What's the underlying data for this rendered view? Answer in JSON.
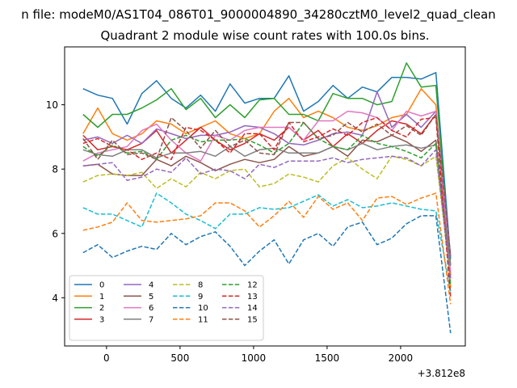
{
  "chart_data": {
    "type": "line",
    "suptitle": "n file: modeM0/AS1T04_086T01_9000004890_34280cztM0_level2_quad_clean",
    "title": "Quadrant 2 module wise count rates with 100.0s bins.",
    "xlabel": "",
    "ylabel": "",
    "x_offset_label": "+3.812e8",
    "xlim": [
      -285,
      2440
    ],
    "ylim": [
      2.5,
      11.8
    ],
    "xticks": [
      0,
      500,
      1000,
      1500,
      2000
    ],
    "xtick_labels": [
      "0",
      "500",
      "1000",
      "1500",
      "2000"
    ],
    "yticks": [
      4,
      6,
      8,
      10
    ],
    "ytick_labels": [
      "4",
      "6",
      "8",
      "10"
    ],
    "grid": false,
    "legend": {
      "placement": "lower-left",
      "columns": 4
    },
    "x": [
      -160,
      -60,
      40,
      140,
      240,
      340,
      440,
      540,
      640,
      740,
      840,
      940,
      1040,
      1140,
      1240,
      1340,
      1440,
      1540,
      1640,
      1740,
      1840,
      1940,
      2040,
      2140,
      2240,
      2340
    ],
    "series": [
      {
        "name": "0",
        "color": "#1f77b4",
        "dash": "solid",
        "values": [
          10.5,
          10.3,
          10.2,
          9.4,
          10.35,
          10.75,
          10.2,
          9.9,
          10.3,
          9.8,
          10.65,
          10.05,
          10.2,
          10.2,
          10.9,
          9.8,
          10.1,
          10.6,
          10.2,
          10.55,
          10.4,
          10.85,
          10.85,
          10.8,
          11.0,
          5.2
        ]
      },
      {
        "name": "1",
        "color": "#ff7f0e",
        "dash": "solid",
        "values": [
          9.1,
          9.9,
          9.1,
          8.9,
          9.1,
          9.5,
          9.4,
          9.1,
          9.3,
          9.5,
          9.1,
          8.95,
          9.1,
          9.8,
          10.2,
          9.6,
          9.8,
          9.6,
          9.3,
          9.2,
          9.35,
          9.6,
          9.7,
          10.5,
          10.0,
          4.3
        ]
      },
      {
        "name": "2",
        "color": "#2ca02c",
        "dash": "solid",
        "values": [
          9.7,
          9.3,
          9.7,
          9.7,
          9.9,
          10.15,
          10.5,
          9.85,
          10.2,
          9.6,
          10.0,
          9.6,
          10.15,
          10.2,
          9.7,
          9.7,
          9.5,
          10.35,
          10.2,
          10.2,
          10.0,
          10.1,
          11.3,
          10.55,
          10.6,
          5.0
        ]
      },
      {
        "name": "3",
        "color": "#d62728",
        "dash": "solid",
        "values": [
          9.05,
          8.6,
          8.7,
          8.6,
          8.8,
          9.2,
          8.5,
          8.9,
          9.3,
          8.9,
          8.6,
          8.8,
          9.1,
          8.9,
          9.3,
          8.9,
          9.2,
          8.7,
          9.1,
          8.8,
          9.2,
          9.5,
          9.4,
          9.1,
          9.7,
          4.7
        ]
      },
      {
        "name": "4",
        "color": "#9467bd",
        "dash": "solid",
        "values": [
          8.9,
          9.0,
          8.8,
          9.05,
          8.8,
          9.25,
          9.1,
          8.95,
          9.05,
          9.05,
          9.15,
          9.35,
          9.3,
          9.1,
          8.8,
          8.75,
          8.9,
          9.1,
          9.15,
          9.05,
          10.4,
          9.3,
          9.7,
          9.3,
          9.8,
          5.3
        ]
      },
      {
        "name": "5",
        "color": "#8c564b",
        "dash": "solid",
        "values": [
          8.1,
          8.15,
          7.85,
          7.8,
          7.8,
          8.3,
          8.1,
          8.4,
          8.2,
          7.95,
          8.15,
          8.3,
          8.2,
          8.3,
          8.7,
          8.4,
          8.5,
          8.7,
          8.4,
          8.9,
          8.85,
          9.05,
          8.85,
          8.55,
          8.9,
          4.6
        ]
      },
      {
        "name": "6",
        "color": "#e377c2",
        "dash": "solid",
        "values": [
          8.25,
          8.5,
          8.6,
          8.7,
          9.2,
          9.4,
          8.9,
          8.5,
          8.25,
          9.05,
          8.9,
          9.2,
          9.3,
          9.3,
          9.3,
          8.9,
          9.5,
          9.5,
          9.8,
          9.75,
          9.6,
          9.2,
          9.8,
          9.65,
          9.8,
          4.8
        ]
      },
      {
        "name": "7",
        "color": "#7f7f7f",
        "dash": "solid",
        "values": [
          8.6,
          8.45,
          8.4,
          8.6,
          8.6,
          8.35,
          8.5,
          8.5,
          8.55,
          8.4,
          8.7,
          8.4,
          8.6,
          8.65,
          8.5,
          8.5,
          8.5,
          8.7,
          8.6,
          8.8,
          8.6,
          8.7,
          8.75,
          8.65,
          8.75,
          5.0
        ]
      },
      {
        "name": "8",
        "color": "#bcbd22",
        "dash": "dashed",
        "values": [
          7.6,
          7.8,
          7.85,
          7.8,
          7.9,
          7.4,
          7.7,
          7.45,
          7.9,
          7.7,
          7.95,
          8.0,
          7.45,
          7.55,
          7.85,
          7.75,
          7.6,
          8.1,
          8.35,
          8.0,
          7.7,
          8.4,
          8.3,
          8.1,
          8.4,
          4.6
        ]
      },
      {
        "name": "9",
        "color": "#17becf",
        "dash": "dashed",
        "values": [
          6.8,
          6.6,
          6.6,
          6.4,
          6.2,
          7.25,
          6.95,
          6.6,
          6.4,
          6.15,
          6.6,
          6.6,
          6.8,
          6.75,
          6.8,
          7.0,
          7.2,
          6.85,
          7.05,
          6.8,
          6.85,
          6.95,
          6.85,
          6.75,
          6.7,
          4.2
        ]
      },
      {
        "name": "10",
        "color": "#1f77b4",
        "dash": "dashed",
        "values": [
          5.4,
          5.65,
          5.25,
          5.45,
          5.6,
          5.5,
          6.0,
          5.65,
          5.9,
          6.05,
          5.6,
          5.0,
          5.45,
          5.8,
          5.05,
          5.8,
          6.0,
          5.6,
          6.2,
          6.35,
          5.65,
          5.85,
          6.3,
          6.55,
          6.55,
          2.9
        ]
      },
      {
        "name": "11",
        "color": "#ff7f0e",
        "dash": "dashed",
        "values": [
          6.1,
          6.2,
          6.35,
          6.95,
          6.4,
          6.35,
          6.4,
          6.45,
          6.55,
          6.95,
          6.95,
          6.7,
          6.2,
          6.55,
          7.0,
          6.5,
          7.15,
          6.75,
          6.95,
          6.4,
          7.1,
          7.15,
          6.9,
          7.1,
          7.25,
          3.8
        ]
      },
      {
        "name": "12",
        "color": "#2ca02c",
        "dash": "dashed",
        "values": [
          8.7,
          8.4,
          8.75,
          8.5,
          8.55,
          8.3,
          8.9,
          9.05,
          8.85,
          8.9,
          8.9,
          8.95,
          8.75,
          8.5,
          8.8,
          9.45,
          8.95,
          8.7,
          8.6,
          9.05,
          8.8,
          8.7,
          8.55,
          8.35,
          8.8,
          4.4
        ]
      },
      {
        "name": "13",
        "color": "#d62728",
        "dash": "dashed",
        "values": [
          8.8,
          8.95,
          8.7,
          8.6,
          8.3,
          8.5,
          8.3,
          9.3,
          9.2,
          8.9,
          8.5,
          9.1,
          9.1,
          8.6,
          9.45,
          8.85,
          9.0,
          9.25,
          9.05,
          9.45,
          9.6,
          9.2,
          9.0,
          9.55,
          9.6,
          4.0
        ]
      },
      {
        "name": "14",
        "color": "#9467bd",
        "dash": "dashed",
        "values": [
          8.1,
          8.15,
          8.2,
          7.65,
          7.75,
          8.0,
          7.9,
          8.35,
          7.85,
          8.0,
          7.95,
          7.7,
          8.15,
          8.05,
          8.25,
          8.25,
          8.25,
          8.35,
          8.2,
          8.3,
          8.35,
          8.4,
          8.35,
          8.1,
          8.6,
          4.6
        ]
      },
      {
        "name": "15",
        "color": "#8c564b",
        "dash": "dashed",
        "values": [
          8.95,
          8.3,
          8.9,
          8.45,
          8.5,
          8.3,
          9.6,
          9.2,
          8.65,
          9.2,
          8.7,
          8.9,
          8.5,
          8.45,
          9.45,
          9.45,
          8.95,
          9.05,
          9.45,
          9.15,
          9.4,
          9.05,
          9.35,
          9.05,
          9.7,
          5.3
        ]
      }
    ]
  }
}
